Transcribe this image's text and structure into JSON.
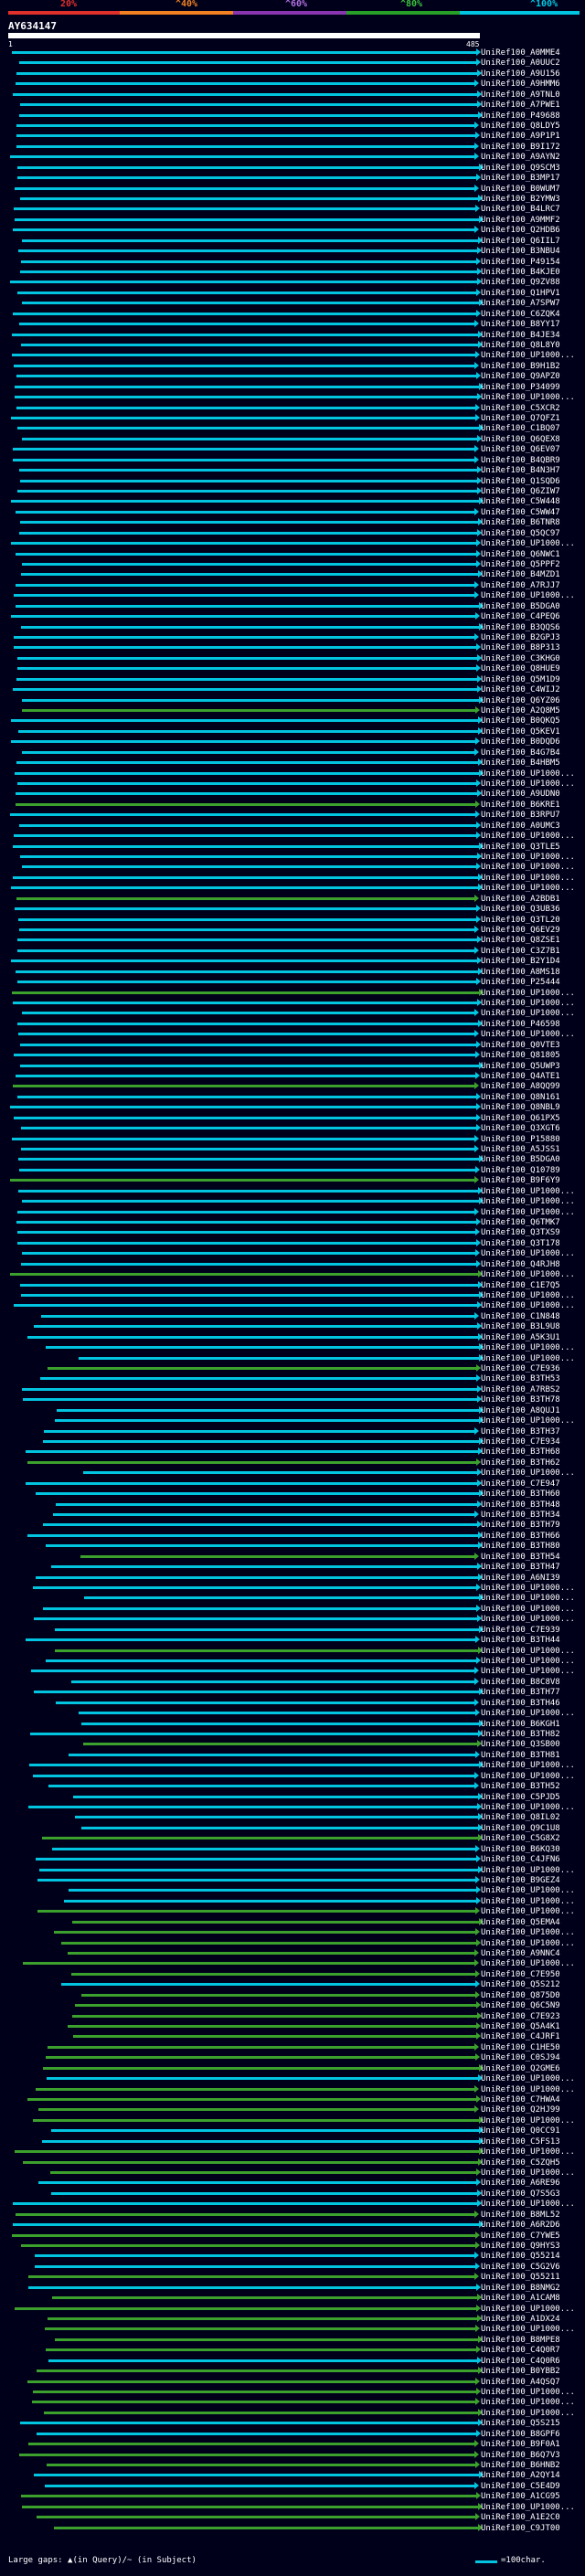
{
  "header": {
    "percent_labels": [
      "20%",
      "^40%",
      "^60%",
      "^80%",
      "^100%"
    ],
    "percent_colors": [
      "#e0302c",
      "#f08020",
      "#8a35b0",
      "#28a028",
      "#00c4e0"
    ],
    "query_title": "AY634147",
    "tick_start": "1",
    "tick_end": "485"
  },
  "colors": {
    "identity_high": "#00c4e0",
    "identity_mid": "#3ca02c",
    "query_bar": "#ffffff",
    "background": "#00001b"
  },
  "hits": [
    "UniRef100_A0MME4",
    "UniRef100_A0UUC2",
    "UniRef100_A9U156",
    "UniRef100_A9HMM6",
    "UniRef100_A9TNL0",
    "UniRef100_A7PWE1",
    "UniRef100_P49688",
    "UniRef100_Q8LDY5",
    "UniRef100_A9P1P1",
    "UniRef100_B9I172",
    "UniRef100_A9AYN2",
    "UniRef100_Q9SCM3",
    "UniRef100_B3MP17",
    "UniRef100_B0WUM7",
    "UniRef100_B2YMW3",
    "UniRef100_B4LRC7",
    "UniRef100_A9MMF2",
    "UniRef100_Q2HDB6",
    "UniRef100_Q6IIL7",
    "UniRef100_B3NBU4",
    "UniRef100_P49154",
    "UniRef100_B4KJE0",
    "UniRef100_Q9ZV88",
    "UniRef100_Q1HPV1",
    "UniRef100_A7SPW7",
    "UniRef100_C6ZQK4",
    "UniRef100_B8YY17",
    "UniRef100_B4JE34",
    "UniRef100_Q8L8Y0",
    "UniRef100_UP1000...",
    "UniRef100_B9H1B2",
    "UniRef100_Q9APZ0",
    "UniRef100_P34099",
    "UniRef100_UP1000...",
    "UniRef100_C5XCR2",
    "UniRef100_Q7QFZ1",
    "UniRef100_C1BQ07",
    "UniRef100_Q6QEX8",
    "UniRef100_Q6EV07",
    "UniRef100_B4QBR9",
    "UniRef100_B4N3H7",
    "UniRef100_Q1SQD6",
    "UniRef100_Q6ZIW7",
    "UniRef100_C5W448",
    "UniRef100_C5WW47",
    "UniRef100_B6TNR8",
    "UniRef100_Q5QC97",
    "UniRef100_UP1000...",
    "UniRef100_Q6NWC1",
    "UniRef100_Q5PPF2",
    "UniRef100_B4MZD1",
    "UniRef100_A7RJJ7",
    "UniRef100_UP1000...",
    "UniRef100_B5DGA0",
    "UniRef100_C4PEQ6",
    "UniRef100_B3QQS6",
    "UniRef100_B2GPJ3",
    "UniRef100_B8P313",
    "UniRef100_C3KHG0",
    "UniRef100_Q8HUE9",
    "UniRef100_Q5M1D9",
    "UniRef100_C4WIJ2",
    "UniRef100_Q6YZ06",
    "UniRef100_A2Q8M5",
    "UniRef100_B0QKQ5",
    "UniRef100_Q5KEV1",
    "UniRef100_B0DQD6",
    "UniRef100_B4G7B4",
    "UniRef100_B4HBM5",
    "UniRef100_UP1000...",
    "UniRef100_UP1000...",
    "UniRef100_A9UDN0",
    "UniRef100_B6KRE1",
    "UniRef100_B3RPU7",
    "UniRef100_A0UMC3",
    "UniRef100_UP1000...",
    "UniRef100_Q3TLE5",
    "UniRef100_UP1000...",
    "UniRef100_UP1000...",
    "UniRef100_UP1000...",
    "UniRef100_UP1000...",
    "UniRef100_A2BDB1",
    "UniRef100_Q3UB36",
    "UniRef100_Q3TL20",
    "UniRef100_Q6EV29",
    "UniRef100_Q8ZSE1",
    "UniRef100_C3Z7B1",
    "UniRef100_B2Y1D4",
    "UniRef100_A8MS18",
    "UniRef100_P25444",
    "UniRef100_UP1000...",
    "UniRef100_UP1000...",
    "UniRef100_UP1000...",
    "UniRef100_P46598",
    "UniRef100_UP1000...",
    "UniRef100_Q0VTE3",
    "UniRef100_Q81805",
    "UniRef100_Q5UWP3",
    "UniRef100_Q4ATE1",
    "UniRef100_A8QQ99",
    "UniRef100_Q8N161",
    "UniRef100_Q8NBL9",
    "UniRef100_Q61PX5",
    "UniRef100_Q3XGT6",
    "UniRef100_P15880",
    "UniRef100_A5JSS1",
    "UniRef100_B5DGA0",
    "UniRef100_Q10789",
    "UniRef100_B9F6Y9",
    "UniRef100_UP1000...",
    "UniRef100_UP1000...",
    "UniRef100_UP1000...",
    "UniRef100_Q6TMK7",
    "UniRef100_Q3TXS9",
    "UniRef100_Q3T178",
    "UniRef100_UP1000...",
    "UniRef100_Q4RJH8",
    "UniRef100_UP1000...",
    "UniRef100_C1E7Q5",
    "UniRef100_UP1000...",
    "UniRef100_UP1000...",
    "UniRef100_C1N848",
    "UniRef100_B3L9U8",
    "UniRef100_A5K3U1",
    "UniRef100_UP1000...",
    "UniRef100_UP1000...",
    "UniRef100_C7E936",
    "UniRef100_B3TH53",
    "UniRef100_A7RBS2",
    "UniRef100_B3TH78",
    "UniRef100_A8QUJ1",
    "UniRef100_UP1000...",
    "UniRef100_B3TH37",
    "UniRef100_C7E934",
    "UniRef100_B3TH68",
    "UniRef100_B3TH62",
    "UniRef100_UP1000...",
    "UniRef100_C7E947",
    "UniRef100_B3TH60",
    "UniRef100_B3TH48",
    "UniRef100_B3TH34",
    "UniRef100_B3TH79",
    "UniRef100_B3TH66",
    "UniRef100_B3TH80",
    "UniRef100_B3TH54",
    "UniRef100_B3TH47",
    "UniRef100_A6NI39",
    "UniRef100_UP1000...",
    "UniRef100_UP1000...",
    "UniRef100_UP1000...",
    "UniRef100_UP1000...",
    "UniRef100_C7E939",
    "UniRef100_B3TH44",
    "UniRef100_UP1000...",
    "UniRef100_UP1000...",
    "UniRef100_UP1000...",
    "UniRef100_B8C8V8",
    "UniRef100_B3TH77",
    "UniRef100_B3TH46",
    "UniRef100_UP1000...",
    "UniRef100_B6KGH1",
    "UniRef100_B3TH82",
    "UniRef100_Q3SB00",
    "UniRef100_B3TH81",
    "UniRef100_UP1000...",
    "UniRef100_UP1000...",
    "UniRef100_B3TH52",
    "UniRef100_C5PJD5",
    "UniRef100_UP1000...",
    "UniRef100_Q8IL02",
    "UniRef100_Q9C1U8",
    "UniRef100_C5G8X2",
    "UniRef100_B6KQ30",
    "UniRef100_C4JFN6",
    "UniRef100_UP1000...",
    "UniRef100_B9GEZ4",
    "UniRef100_UP1000...",
    "UniRef100_UP1000...",
    "UniRef100_UP1000...",
    "UniRef100_Q5EMA4",
    "UniRef100_UP1000...",
    "UniRef100_UP1000...",
    "UniRef100_A9NNC4",
    "UniRef100_UP1000...",
    "UniRef100_C7E950",
    "UniRef100_Q5S212",
    "UniRef100_Q875D0",
    "UniRef100_Q6C5N9",
    "UniRef100_C7E923",
    "UniRef100_Q5A4K1",
    "UniRef100_C4JRF1",
    "UniRef100_C1HE50",
    "UniRef100_C0SJ94",
    "UniRef100_Q2GME6",
    "UniRef100_UP1000...",
    "UniRef100_UP1000...",
    "UniRef100_C7HWA4",
    "UniRef100_Q2HJ99",
    "UniRef100_UP1000...",
    "UniRef100_Q0CC91",
    "UniRef100_C5FS13",
    "UniRef100_UP1000...",
    "UniRef100_C5ZQH5",
    "UniRef100_UP1000...",
    "UniRef100_A6RE96",
    "UniRef100_Q7S5G3",
    "UniRef100_UP1000...",
    "UniRef100_B8ML52",
    "UniRef100_A6R2D6",
    "UniRef100_C7YWE5",
    "UniRef100_Q9HYS3",
    "UniRef100_Q55214",
    "UniRef100_C5G2V6",
    "UniRef100_Q55211",
    "UniRef100_B8NMG2",
    "UniRef100_A1CAM8",
    "UniRef100_UP1000...",
    "UniRef100_A1DX24",
    "UniRef100_UP1000...",
    "UniRef100_B8MPE8",
    "UniRef100_C4Q0R7",
    "UniRef100_C4Q0R6",
    "UniRef100_B0YBB2",
    "UniRef100_A4QSQ7",
    "UniRef100_UP1000...",
    "UniRef100_UP1000...",
    "UniRef100_UP1000...",
    "UniRef100_Q5S215",
    "UniRef100_B8GPF6",
    "UniRef100_B9F0A1",
    "UniRef100_B6Q7V3",
    "UniRef100_B6HNB2",
    "UniRef100_A2QY14",
    "UniRef100_C5E4D9",
    "UniRef100_A1CG95",
    "UniRef100_UP1000...",
    "UniRef100_A1E2C0",
    "UniRef100_C9JT00"
  ],
  "footer": {
    "gaps_text": "Large gaps: ▲(in Query)/~ (in Subject)",
    "legend_text": "=100char."
  }
}
